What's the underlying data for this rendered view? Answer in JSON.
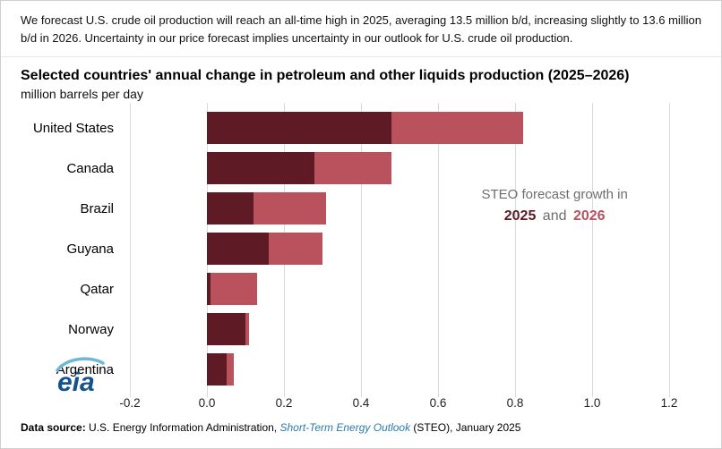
{
  "intro": "We forecast U.S. crude oil production will reach an all-time high in 2025, averaging 13.5 million b/d, increasing slightly to 13.6 million b/d in 2026. Uncertainty in our price forecast implies uncertainty in our outlook for U.S. crude oil production.",
  "title": "Selected countries' annual change in petroleum and other liquids production (2025–2026)",
  "subtitle": "million barrels per day",
  "annotation": {
    "line1": "STEO forecast growth in",
    "year1": "2025",
    "and_word": "and",
    "year2": "2026"
  },
  "logo": {
    "text": "eia"
  },
  "footer": {
    "label": "Data source:",
    "before_link": " U.S. Energy Information Administration, ",
    "link_text": "Short-Term Energy Outlook",
    "after_link": " (STEO), January 2025"
  },
  "colors": {
    "growth_2025": "#5e1b25",
    "growth_2026": "#b9525c",
    "link_blue": "#2a7ab0",
    "gridline": "#dadada"
  },
  "chart_data": {
    "type": "bar",
    "orientation": "horizontal",
    "stacked": true,
    "title": "Selected countries' annual change in petroleum and other liquids production (2025–2026)",
    "xlabel": "million barrels per day",
    "ylabel": "",
    "categories": [
      "United States",
      "Canada",
      "Brazil",
      "Guyana",
      "Qatar",
      "Norway",
      "Argentina"
    ],
    "series": [
      {
        "name": "2025",
        "color": "#5e1b25",
        "values": [
          0.48,
          0.28,
          0.12,
          0.16,
          0.01,
          0.1,
          0.05
        ]
      },
      {
        "name": "2026",
        "color": "#b9525c",
        "values": [
          0.34,
          0.2,
          0.19,
          0.14,
          0.12,
          0.01,
          0.02
        ]
      }
    ],
    "totals": [
      0.82,
      0.48,
      0.31,
      0.3,
      0.13,
      0.11,
      0.07
    ],
    "xlim": [
      -0.2,
      1.2
    ],
    "xticks": [
      -0.2,
      0.0,
      0.2,
      0.4,
      0.6,
      0.8,
      1.0,
      1.2
    ],
    "xtick_labels": [
      "-0.2",
      "0.0",
      "0.2",
      "0.4",
      "0.6",
      "0.8",
      "1.0",
      "1.2"
    ],
    "grid": "vertical",
    "legend_position": "annotation-in-plot"
  }
}
